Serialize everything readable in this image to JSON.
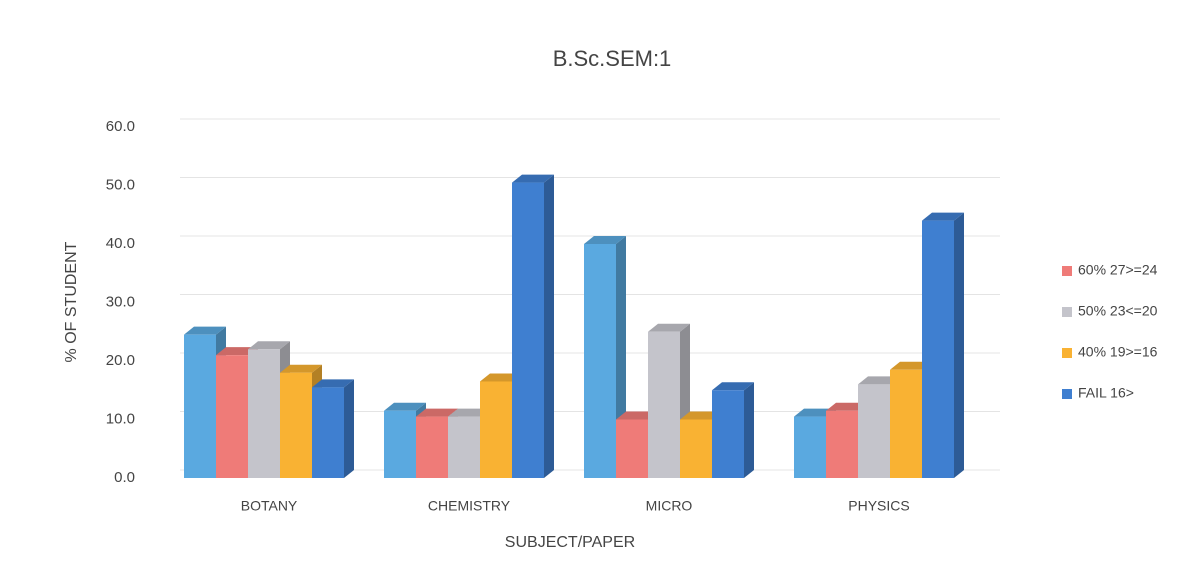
{
  "chart_data": {
    "type": "bar3d",
    "title": "B.Sc.SEM:1",
    "x_label": "SUBJECT/PAPER",
    "y_label": "% OF STUDENT",
    "categories": [
      "BOTANY",
      "CHEMISTRY",
      "MICRO",
      "PHYSICS"
    ],
    "series": [
      {
        "color": "#5aa9e0",
        "values": [
          24.5,
          11.5,
          40,
          10.5
        ]
      },
      {
        "name": "60% 27>=24",
        "color": "#ef7b78",
        "values": [
          21,
          10.5,
          10,
          11.5
        ]
      },
      {
        "name": "50% 23<=20",
        "color": "#c4c4cb",
        "values": [
          22,
          10.5,
          25,
          16
        ]
      },
      {
        "name": "40% 19>=16",
        "color": "#f9b233",
        "values": [
          18,
          16.5,
          10,
          18.5
        ]
      },
      {
        "name": "FAIL 16>",
        "color": "#3f7fd0",
        "values": [
          15.5,
          50.5,
          15,
          44
        ]
      }
    ],
    "ylim": [
      0,
      60
    ],
    "yticks": [
      {
        "value": 0,
        "label": "0.0"
      },
      {
        "value": 10,
        "label": "10.0"
      },
      {
        "value": 20,
        "label": "20.0"
      },
      {
        "value": 30,
        "label": "30.0"
      },
      {
        "value": 40,
        "label": "40.0"
      },
      {
        "value": 50,
        "label": "50.0"
      },
      {
        "value": 60,
        "label": "60.0"
      }
    ],
    "grid": true,
    "legend": "right"
  }
}
